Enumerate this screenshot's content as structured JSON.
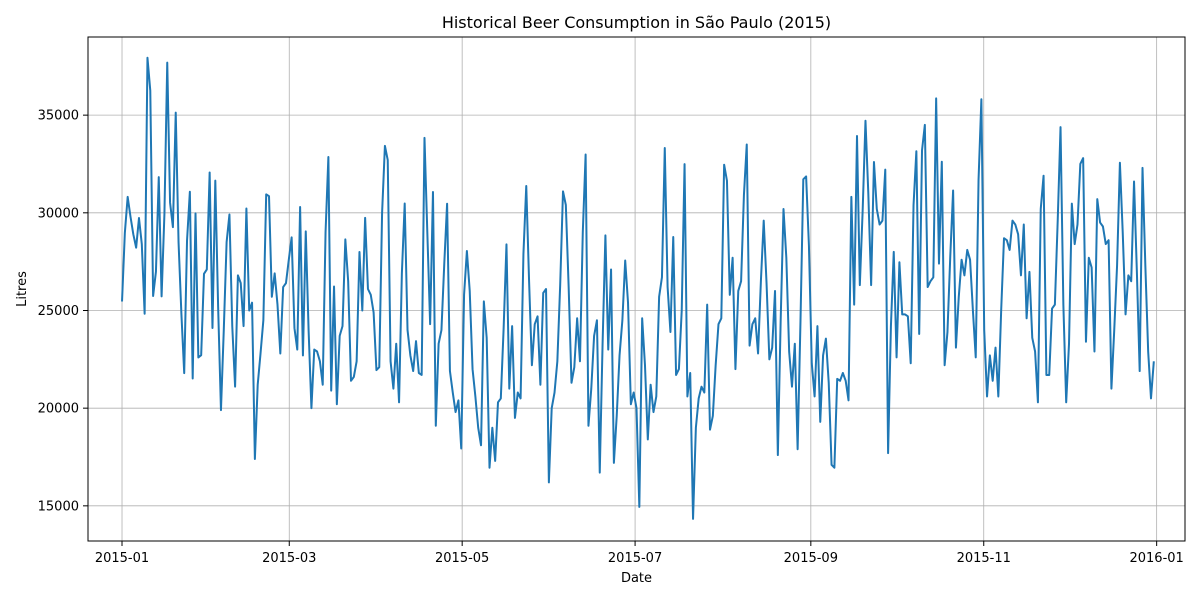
{
  "chart_data": {
    "type": "line",
    "title": "Historical Beer Consumption in São Paulo (2015)",
    "xlabel": "Date",
    "ylabel": "Litres",
    "x_ticks": [
      "2015-01",
      "2015-03",
      "2015-05",
      "2015-07",
      "2015-09",
      "2015-11",
      "2016-01"
    ],
    "y_ticks": [
      15000,
      20000,
      25000,
      30000,
      35000
    ],
    "xlim": [
      "2014-12-20",
      "2016-01-11"
    ],
    "ylim": [
      13200,
      39000
    ],
    "grid": true,
    "line_color": "#1f77b4",
    "series": [
      {
        "start": "2015-01-01",
        "end": "2015-12-31",
        "values": [
          25461,
          28972,
          30814,
          29799,
          28900,
          28218,
          29732,
          28397,
          24834,
          37937,
          36254,
          25743,
          26990,
          31825,
          25724,
          29938,
          37690,
          30524,
          29265,
          35127,
          28492,
          24845,
          21794,
          28581,
          31076,
          21520,
          29970,
          22596,
          22711,
          26879,
          27101,
          32066,
          24102,
          31648,
          25183,
          19899,
          24000,
          28500,
          29914,
          24200,
          21102,
          26800,
          26400,
          24200,
          30221,
          25000,
          25400,
          17399,
          21200,
          22800,
          24500,
          30946,
          30850,
          25700,
          26900,
          25300,
          22800,
          26200,
          26400,
          27600,
          28742,
          24100,
          23000,
          30295,
          22700,
          29050,
          24000,
          20000,
          23000,
          22900,
          22400,
          21200,
          29000,
          32858,
          20900,
          26225,
          20200,
          23700,
          24200,
          28640,
          26500,
          21400,
          21600,
          22400,
          27996,
          25000,
          29743,
          26100,
          25800,
          24900,
          21950,
          22100,
          30000,
          33427,
          32700,
          22400,
          21000,
          23300,
          20300,
          26900,
          30474,
          24000,
          22700,
          21900,
          23430,
          21800,
          21700,
          33835,
          29000,
          24300,
          31067,
          19100,
          23300,
          24000,
          27400,
          30467,
          21900,
          20800,
          19800,
          20400,
          17937,
          25800,
          28042,
          26000,
          22000,
          20600,
          19000,
          18100,
          25465,
          23600,
          16950,
          19000,
          17300,
          20300,
          20500,
          24100,
          28384,
          21000,
          24200,
          19500,
          20800,
          20500,
          27900,
          31375,
          26500,
          22200,
          24300,
          24700,
          21200,
          25900,
          26100,
          16200,
          20000,
          20800,
          22400,
          26300,
          31100,
          30400,
          26200,
          21300,
          22100,
          24600,
          22400,
          29000,
          32985,
          19100,
          21000,
          23700,
          24500,
          16700,
          23300,
          28846,
          23000,
          27100,
          17200,
          19600,
          22700,
          24500,
          27558,
          25400,
          20200,
          20800,
          20000,
          14945,
          24600,
          22200,
          18400,
          21200,
          19800,
          20600,
          25700,
          26700,
          33316,
          26200,
          23900,
          28760,
          21700,
          22000,
          25000,
          32494,
          20600,
          21800,
          14335,
          19000,
          20500,
          21100,
          20800,
          25300,
          18900,
          19600,
          22200,
          24300,
          24600,
          32463,
          31641,
          25800,
          27700,
          22000,
          26000,
          26500,
          30900,
          33500,
          23200,
          24300,
          24600,
          22800,
          26500,
          29600,
          26400,
          22500,
          23100,
          26000,
          17600,
          24500,
          30194,
          27700,
          22900,
          21100,
          23300,
          17900,
          24400,
          31713,
          31860,
          28300,
          22300,
          20600,
          24200,
          19300,
          22700,
          23561,
          21300,
          17100,
          16950,
          21500,
          21400,
          21800,
          21400,
          20400,
          30818,
          25300,
          33930,
          26300,
          30100,
          34711,
          31000,
          26300,
          32601,
          30200,
          29400,
          29600,
          32208,
          17700,
          24200,
          28000,
          22600,
          27470,
          24800,
          24800,
          24700,
          22300,
          30400,
          33154,
          23800,
          33200,
          34500,
          26200,
          26500,
          26700,
          35859,
          27400,
          32617,
          22200,
          23900,
          27800,
          31144,
          23100,
          25700,
          27600,
          26800,
          28100,
          27600,
          25000,
          22600,
          31700,
          35816,
          24000,
          20600,
          22700,
          21400,
          23100,
          20600,
          25000,
          28700,
          28600,
          28100,
          29600,
          29400,
          28900,
          26800,
          29400,
          24600,
          26974,
          23600,
          22900,
          20300,
          30200,
          31900,
          21700,
          21700,
          25100,
          25300,
          29600,
          34389,
          25300,
          20300,
          23300,
          30473,
          28400,
          29400,
          32500,
          32800,
          23400,
          27700,
          27200,
          22900,
          30700,
          29500,
          29300,
          28400,
          28600,
          21000,
          24000,
          27300,
          32560,
          29000,
          24800,
          26800,
          26500,
          31600,
          27000,
          21900,
          32300,
          27300,
          22900,
          20500,
          22400
        ]
      }
    ]
  }
}
